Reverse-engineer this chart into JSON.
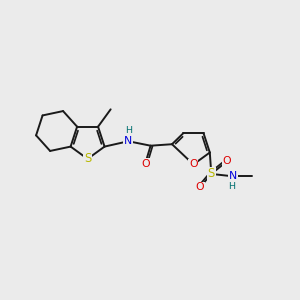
{
  "bg_color": "#ebebeb",
  "bond_color": "#1a1a1a",
  "bond_width": 1.4,
  "atom_colors": {
    "S": "#b8b800",
    "N": "#0000dd",
    "O": "#dd0000",
    "H": "#007070"
  },
  "figsize": [
    3.0,
    3.0
  ],
  "dpi": 100,
  "xlim": [
    0,
    10
  ],
  "ylim": [
    0,
    10
  ]
}
